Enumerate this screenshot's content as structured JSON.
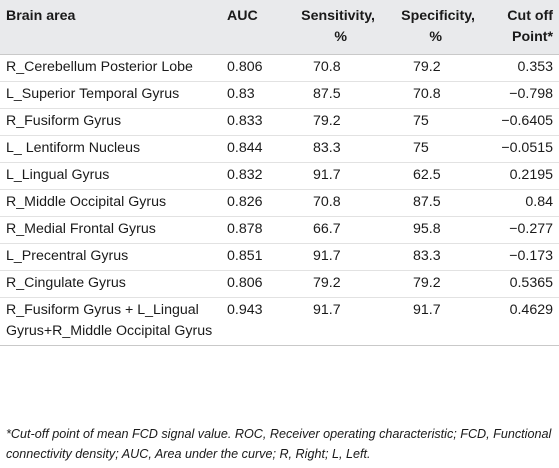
{
  "table": {
    "headers": {
      "area": "Brain area",
      "auc": "AUC",
      "sensitivity_line1": "Sensitivity,",
      "sensitivity_line2": "%",
      "specificity_line1": "Specificity,",
      "specificity_line2": "%",
      "cutoff_line1": "Cut off",
      "cutoff_line2": "Point*"
    },
    "rows": [
      {
        "area": "R_Cerebellum Posterior Lobe",
        "auc": "0.806",
        "sensitivity": "70.8",
        "specificity": "79.2",
        "cutoff": "0.353"
      },
      {
        "area": "L_Superior Temporal Gyrus",
        "auc": "0.83",
        "sensitivity": "87.5",
        "specificity": "70.8",
        "cutoff": "−0.798"
      },
      {
        "area": "R_Fusiform Gyrus",
        "auc": "0.833",
        "sensitivity": "79.2",
        "specificity": "75",
        "cutoff": "−0.6405"
      },
      {
        "area": "L_ Lentiform Nucleus",
        "auc": "0.844",
        "sensitivity": "83.3",
        "specificity": "75",
        "cutoff": "−0.0515"
      },
      {
        "area": "L_Lingual Gyrus",
        "auc": "0.832",
        "sensitivity": "91.7",
        "specificity": "62.5",
        "cutoff": "0.2195"
      },
      {
        "area": "R_Middle Occipital Gyrus",
        "auc": "0.826",
        "sensitivity": "70.8",
        "specificity": "87.5",
        "cutoff": "0.84"
      },
      {
        "area": "R_Medial Frontal Gyrus",
        "auc": "0.878",
        "sensitivity": "66.7",
        "specificity": "95.8",
        "cutoff": "−0.277"
      },
      {
        "area": "L_Precentral Gyrus",
        "auc": "0.851",
        "sensitivity": "91.7",
        "specificity": "83.3",
        "cutoff": "−0.173"
      },
      {
        "area": "R_Cingulate Gyrus",
        "auc": "0.806",
        "sensitivity": "79.2",
        "specificity": "79.2",
        "cutoff": "0.5365"
      },
      {
        "area": "R_Fusiform Gyrus + L_Lingual Gyrus+R_Middle Occipital Gyrus",
        "auc": "0.943",
        "sensitivity": "91.7",
        "specificity": "91.7",
        "cutoff": "0.4629"
      }
    ]
  },
  "footnote": "*Cut-off point of mean FCD signal value. ROC, Receiver operating characteristic; FCD, Functional connectivity density; AUC, Area under the curve; R, Right; L, Left.",
  "colors": {
    "header_background": "#e9eaec",
    "text": "#1a1a1a",
    "row_divider": "#e2e2e2"
  }
}
